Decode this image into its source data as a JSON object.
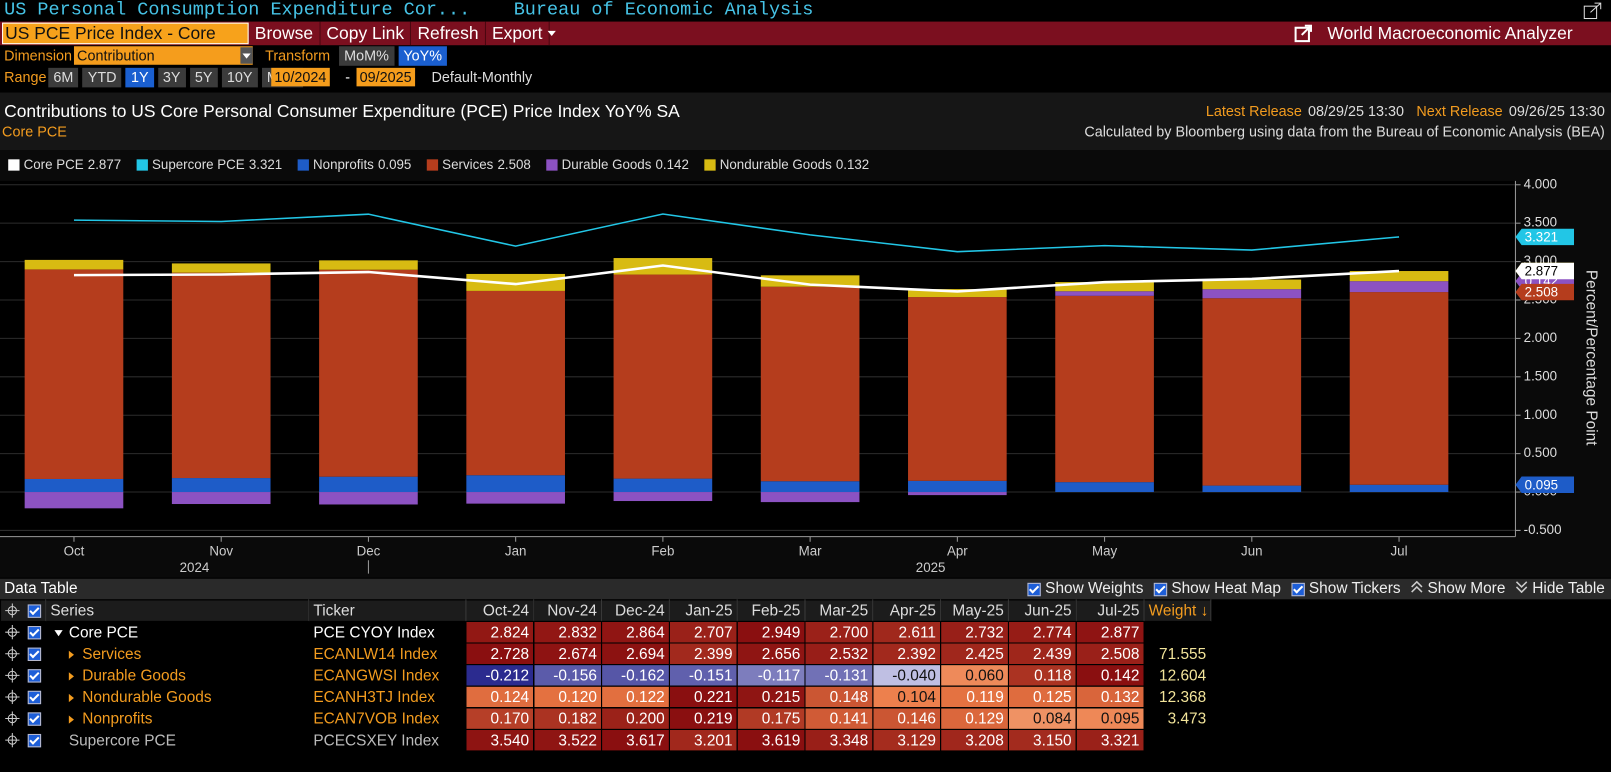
{
  "window": {
    "title": "US Personal Consumption Expenditure Cor...",
    "source": "Bureau of Economic Analysis"
  },
  "toolbar": {
    "security": "US PCE Price Index - Core",
    "buttons": [
      "Browse",
      "Copy Link",
      "Refresh",
      "Export"
    ],
    "app": "World Macroeconomic Analyzer"
  },
  "controls": {
    "dimension_label": "Dimension",
    "dimension": "Contribution",
    "transform_label": "Transform",
    "transforms": [
      "MoM%",
      "YoY%"
    ],
    "transform_selected": "YoY%",
    "range_label": "Range",
    "ranges": [
      "6M",
      "YTD",
      "1Y",
      "3Y",
      "5Y",
      "10Y",
      "MAX"
    ],
    "range_selected": "1Y",
    "start": "10/2024",
    "separator": "-",
    "end": "09/2025",
    "frequency": "Default-Monthly"
  },
  "chart_data": {
    "type": "bar",
    "stacked": true,
    "title": "Contributions to US Core Personal Consumer Expenditure (PCE) Price Index YoY% SA",
    "subtitle": "Core PCE",
    "latest_release_label": "Latest Release",
    "latest_release": "08/29/25 13:30",
    "next_release_label": "Next Release",
    "next_release": "09/26/25 13:30",
    "note": "Calculated by Bloomberg using data from the Bureau of Economic Analysis (BEA)",
    "categories": [
      "Oct",
      "Nov",
      "Dec",
      "Jan",
      "Feb",
      "Mar",
      "Apr",
      "May",
      "Jun",
      "Jul"
    ],
    "year_labels": [
      null,
      "2024",
      null,
      null,
      null,
      null,
      "2025",
      null,
      null,
      null
    ],
    "y_label": "Percent/Percentage Point",
    "ylim": [
      -0.58,
      4.05
    ],
    "yticks": [
      {
        "value": -0.5,
        "label": "-0.500"
      },
      {
        "value": 0,
        "label": "0.000"
      },
      {
        "value": 0.5,
        "label": "0.500"
      },
      {
        "value": 1,
        "label": "1.000"
      },
      {
        "value": 1.5,
        "label": "1.500"
      },
      {
        "value": 2,
        "label": "2.000"
      },
      {
        "value": 2.5,
        "label": "2.500"
      },
      {
        "value": 3,
        "label": "3.000"
      },
      {
        "value": 3.5,
        "label": "3.500"
      },
      {
        "value": 4,
        "label": "4.000"
      }
    ],
    "grid": true,
    "series": [
      {
        "name": "Core PCE",
        "type": "line",
        "color": "#ffffff",
        "ticker": "PCE CYOY Index",
        "weight": null,
        "values": [
          2.824,
          2.832,
          2.864,
          2.707,
          2.949,
          2.7,
          2.611,
          2.732,
          2.774,
          2.877
        ],
        "value_labels": [
          "2.824",
          "2.832",
          "2.864",
          "2.707",
          "2.949",
          "2.700",
          "2.611",
          "2.732",
          "2.774",
          "2.877"
        ]
      },
      {
        "name": "Supercore PCE",
        "type": "line",
        "color": "#22c6e6",
        "ticker": "PCECSXEY Index",
        "weight": null,
        "values": [
          3.54,
          3.522,
          3.617,
          3.201,
          3.619,
          3.348,
          3.129,
          3.208,
          3.15,
          3.321
        ],
        "value_labels": [
          "3.540",
          "3.522",
          "3.617",
          "3.201",
          "3.619",
          "3.348",
          "3.129",
          "3.208",
          "3.150",
          "3.321"
        ]
      },
      {
        "name": "Nonprofits",
        "type": "bar",
        "color": "#1e5cc8",
        "ticker": "ECAN7VOB Index",
        "weight": 3.473,
        "values": [
          0.17,
          0.182,
          0.2,
          0.219,
          0.175,
          0.141,
          0.146,
          0.129,
          0.084,
          0.095
        ],
        "value_labels": [
          "0.170",
          "0.182",
          "0.200",
          "0.219",
          "0.175",
          "0.141",
          "0.146",
          "0.129",
          "0.084",
          "0.095"
        ]
      },
      {
        "name": "Services",
        "type": "bar",
        "color": "#b53d1d",
        "ticker": "ECANLW14 Index",
        "weight": 71.555,
        "values": [
          2.728,
          2.674,
          2.694,
          2.399,
          2.656,
          2.532,
          2.392,
          2.425,
          2.439,
          2.508
        ],
        "value_labels": [
          "2.728",
          "2.674",
          "2.694",
          "2.399",
          "2.656",
          "2.532",
          "2.392",
          "2.425",
          "2.439",
          "2.508"
        ]
      },
      {
        "name": "Durable Goods",
        "type": "bar",
        "color": "#8c52c2",
        "ticker": "ECANGWSI Index",
        "weight": 12.604,
        "values": [
          -0.212,
          -0.156,
          -0.162,
          -0.151,
          -0.117,
          -0.131,
          -0.04,
          0.06,
          0.118,
          0.142
        ],
        "value_labels": [
          "-0.212",
          "-0.156",
          "-0.162",
          "-0.151",
          "-0.117",
          "-0.131",
          "-0.040",
          "0.060",
          "0.118",
          "0.142"
        ]
      },
      {
        "name": "Nondurable Goods",
        "type": "bar",
        "color": "#d8bb12",
        "ticker": "ECANH3TJ Index",
        "weight": 12.368,
        "values": [
          0.124,
          0.12,
          0.122,
          0.221,
          0.215,
          0.148,
          0.104,
          0.119,
          0.125,
          0.132
        ],
        "value_labels": [
          "0.124",
          "0.120",
          "0.122",
          "0.221",
          "0.215",
          "0.148",
          "0.104",
          "0.119",
          "0.125",
          "0.132"
        ]
      }
    ]
  },
  "data_table": {
    "title": "Data Table",
    "options": [
      "Show Weights",
      "Show Heat Map",
      "Show Tickers"
    ],
    "links": [
      "Show More",
      "Hide Table"
    ],
    "columns": [
      "Series",
      "Ticker",
      "Oct-24",
      "Nov-24",
      "Dec-24",
      "Jan-25",
      "Feb-25",
      "Mar-25",
      "Apr-25",
      "May-25",
      "Jun-25",
      "Jul-25",
      "Weight ↓"
    ]
  }
}
